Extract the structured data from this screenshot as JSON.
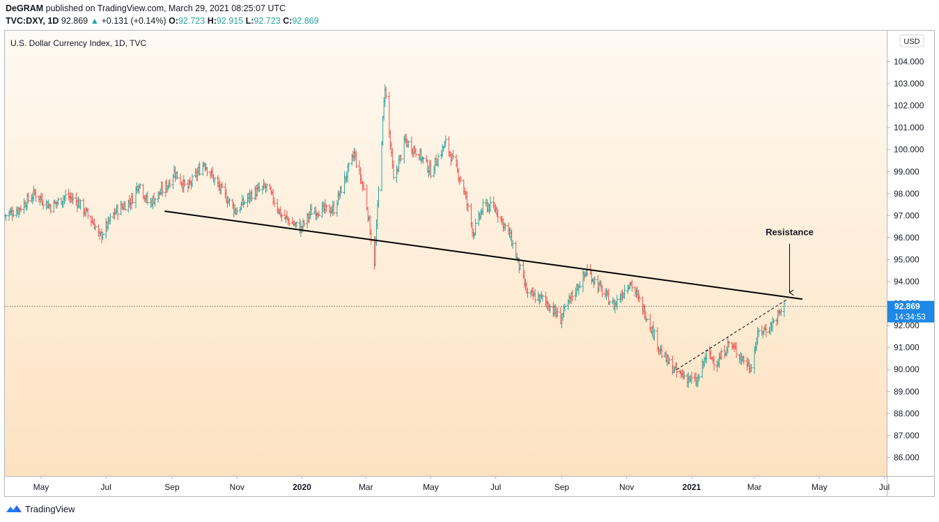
{
  "header": {
    "author": "DeGRAM",
    "published": "published on TradingView.com, March 29, 2021 08:25:07 UTC",
    "symbol": "TVC:DXY, 1D",
    "last": "92.869",
    "change_arrow": "▲",
    "change": "+0.131 (+0.14%)",
    "o_label": "O:",
    "o_val": "92.723",
    "h_label": "H:",
    "h_val": "92.915",
    "l_label": "L:",
    "l_val": "92.723",
    "c_label": "C:",
    "c_val": "92.869"
  },
  "footer": {
    "brand": "TradingView",
    "logo_icon": "tradingview-logo-icon"
  },
  "colors": {
    "up": "#26a69a",
    "down": "#ef5350",
    "bg_top": "#fffaf3",
    "bg_bottom": "#fde2c0",
    "price_tag": "#1e88e5",
    "trendline": "#000000"
  },
  "chart_data": {
    "type": "ohlc",
    "title": "U.S. Dollar Currency Index, 1D, TVC",
    "currency_label": "USD",
    "ylim": [
      85,
      105
    ],
    "y_ticks": [
      "104.000",
      "103.000",
      "102.000",
      "101.000",
      "100.000",
      "99.000",
      "98.000",
      "97.000",
      "96.000",
      "95.000",
      "94.000",
      "93.000",
      "92.000",
      "91.000",
      "90.000",
      "89.000",
      "88.000",
      "87.000",
      "86.000"
    ],
    "x_ticks": [
      {
        "label": "May",
        "date": "2019-05-01",
        "bold": false
      },
      {
        "label": "Jul",
        "date": "2019-07-01",
        "bold": false
      },
      {
        "label": "Sep",
        "date": "2019-09-01",
        "bold": false
      },
      {
        "label": "Nov",
        "date": "2019-11-01",
        "bold": false
      },
      {
        "label": "2020",
        "date": "2020-01-01",
        "bold": true
      },
      {
        "label": "Mar",
        "date": "2020-03-01",
        "bold": false
      },
      {
        "label": "May",
        "date": "2020-05-01",
        "bold": false
      },
      {
        "label": "Jul",
        "date": "2020-07-01",
        "bold": false
      },
      {
        "label": "Sep",
        "date": "2020-09-01",
        "bold": false
      },
      {
        "label": "Nov",
        "date": "2020-11-01",
        "bold": false
      },
      {
        "label": "2021",
        "date": "2021-01-01",
        "bold": true
      },
      {
        "label": "Mar",
        "date": "2021-03-01",
        "bold": false
      },
      {
        "label": "May",
        "date": "2021-05-01",
        "bold": false
      },
      {
        "label": "Jul",
        "date": "2021-07-01",
        "bold": false
      }
    ],
    "x_range": [
      "2019-03-28",
      "2021-07-20"
    ],
    "price_path": [
      [
        "2019-03-28",
        97.0
      ],
      [
        "2019-04-10",
        97.3
      ],
      [
        "2019-04-25",
        98.0
      ],
      [
        "2019-05-10",
        97.4
      ],
      [
        "2019-05-25",
        97.9
      ],
      [
        "2019-06-05",
        97.6
      ],
      [
        "2019-06-20",
        96.6
      ],
      [
        "2019-06-25",
        96.0
      ],
      [
        "2019-07-10",
        97.2
      ],
      [
        "2019-07-25",
        97.7
      ],
      [
        "2019-08-01",
        98.5
      ],
      [
        "2019-08-10",
        97.5
      ],
      [
        "2019-08-28",
        98.4
      ],
      [
        "2019-09-03",
        99.0
      ],
      [
        "2019-09-15",
        98.2
      ],
      [
        "2019-10-01",
        99.4
      ],
      [
        "2019-10-15",
        98.3
      ],
      [
        "2019-10-31",
        97.2
      ],
      [
        "2019-11-15",
        98.0
      ],
      [
        "2019-11-29",
        98.3
      ],
      [
        "2019-12-13",
        97.0
      ],
      [
        "2019-12-31",
        96.4
      ],
      [
        "2020-01-10",
        97.2
      ],
      [
        "2020-01-31",
        97.3
      ],
      [
        "2020-02-19",
        99.8
      ],
      [
        "2020-03-01",
        97.8
      ],
      [
        "2020-03-09",
        94.9
      ],
      [
        "2020-03-19",
        102.9
      ],
      [
        "2020-03-27",
        98.6
      ],
      [
        "2020-04-07",
        100.4
      ],
      [
        "2020-04-20",
        99.8
      ],
      [
        "2020-05-01",
        99.0
      ],
      [
        "2020-05-15",
        100.3
      ],
      [
        "2020-05-31",
        98.4
      ],
      [
        "2020-06-10",
        96.2
      ],
      [
        "2020-06-20",
        97.5
      ],
      [
        "2020-07-01",
        97.3
      ],
      [
        "2020-07-15",
        96.0
      ],
      [
        "2020-07-31",
        93.4
      ],
      [
        "2020-08-15",
        93.2
      ],
      [
        "2020-08-31",
        92.3
      ],
      [
        "2020-09-10",
        93.3
      ],
      [
        "2020-09-25",
        94.5
      ],
      [
        "2020-10-10",
        93.5
      ],
      [
        "2020-10-20",
        92.9
      ],
      [
        "2020-11-04",
        94.0
      ],
      [
        "2020-11-20",
        92.4
      ],
      [
        "2020-12-04",
        90.7
      ],
      [
        "2020-12-17",
        89.9
      ],
      [
        "2021-01-06",
        89.4
      ],
      [
        "2021-01-15",
        90.7
      ],
      [
        "2021-01-25",
        90.3
      ],
      [
        "2021-02-05",
        91.2
      ],
      [
        "2021-02-25",
        90.1
      ],
      [
        "2021-03-05",
        91.7
      ],
      [
        "2021-03-15",
        91.9
      ],
      [
        "2021-03-29",
        92.869
      ]
    ],
    "last_price": "92.869",
    "countdown": "14:34:53",
    "trendlines": [
      {
        "name": "resistance-line",
        "style": "solid",
        "from": [
          "2019-08-25",
          97.2
        ],
        "to": [
          "2021-04-15",
          93.2
        ]
      },
      {
        "name": "rising-support-line",
        "style": "dashed",
        "from": [
          "2020-12-18",
          90.0
        ],
        "to": [
          "2021-04-01",
          93.2
        ]
      }
    ],
    "annotations": [
      {
        "text": "Resistance",
        "date": "2021-04-03",
        "value": 96.1,
        "arrow_to": 93.5
      }
    ]
  }
}
